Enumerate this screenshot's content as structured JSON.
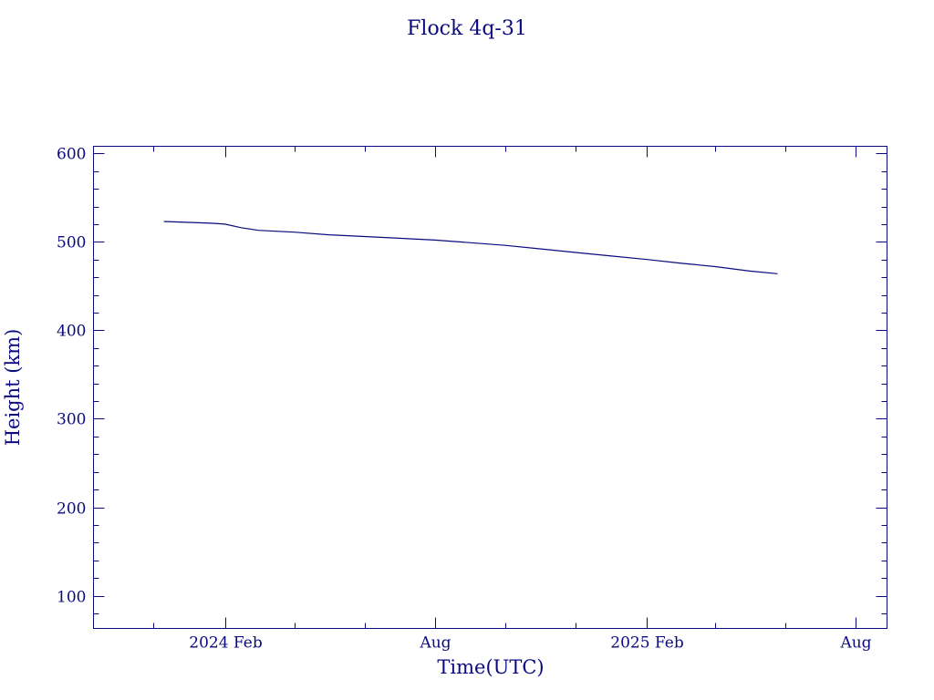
{
  "chart_data": {
    "type": "line",
    "title": "Flock 4q-31",
    "xlabel": "Time(UTC)",
    "ylabel": "Height (km)",
    "ylim": [
      63,
      608
    ],
    "xlim": [
      "2023-10-10",
      "2025-08-28"
    ],
    "yticks": [
      100,
      200,
      300,
      400,
      500,
      600
    ],
    "xticks": [
      {
        "date": "2024-02-01",
        "label": "2024 Feb"
      },
      {
        "date": "2024-08-01",
        "label": "Aug"
      },
      {
        "date": "2025-02-01",
        "label": "2025 Feb"
      },
      {
        "date": "2025-08-01",
        "label": "Aug"
      }
    ],
    "grid": false,
    "color": "#0a0a7e",
    "series": [
      {
        "x": [
          "2023-12-10",
          "2024-01-01",
          "2024-01-20",
          "2024-02-01",
          "2024-02-15",
          "2024-03-01",
          "2024-04-01",
          "2024-05-01",
          "2024-06-01",
          "2024-07-01",
          "2024-08-01",
          "2024-09-01",
          "2024-10-01",
          "2024-11-01",
          "2024-12-01",
          "2025-01-01",
          "2025-02-01",
          "2025-03-01",
          "2025-04-01",
          "2025-05-01",
          "2025-05-25"
        ],
        "y": [
          523,
          522,
          521,
          520,
          516,
          513,
          511,
          508,
          506,
          504,
          502,
          499,
          496,
          492,
          488,
          484,
          480,
          476,
          472,
          467,
          464
        ]
      }
    ]
  }
}
